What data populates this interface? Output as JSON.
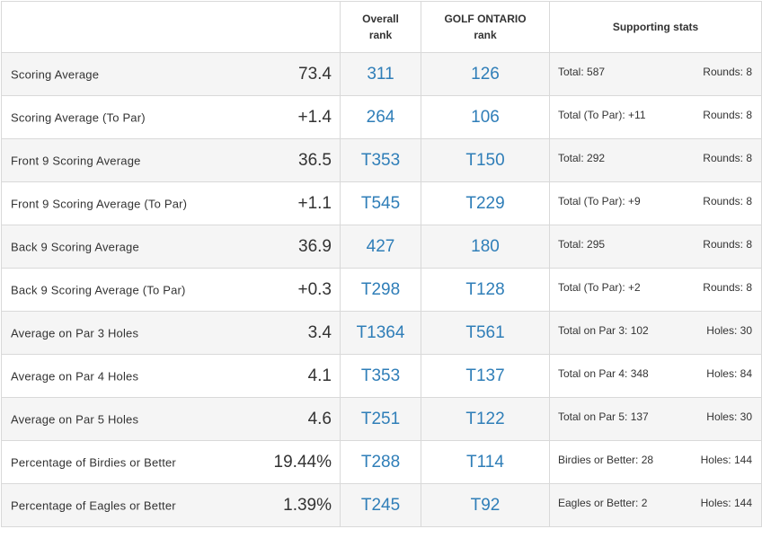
{
  "headers": {
    "label": "",
    "overall_line1": "Overall",
    "overall_line2": "rank",
    "go_line1": "GOLF ONTARIO",
    "go_line2": "rank",
    "supporting": "Supporting stats"
  },
  "rows": [
    {
      "name": "Scoring Average",
      "value": "73.4",
      "overall": "311",
      "go": "126",
      "support_left": "Total: 587",
      "support_right": "Rounds: 8"
    },
    {
      "name": "Scoring Average (To Par)",
      "value": "+1.4",
      "overall": "264",
      "go": "106",
      "support_left": "Total (To Par): +11",
      "support_right": "Rounds: 8"
    },
    {
      "name": "Front 9 Scoring Average",
      "value": "36.5",
      "overall": "T353",
      "go": "T150",
      "support_left": "Total: 292",
      "support_right": "Rounds: 8"
    },
    {
      "name": "Front 9 Scoring Average (To Par)",
      "value": "+1.1",
      "overall": "T545",
      "go": "T229",
      "support_left": "Total (To Par): +9",
      "support_right": "Rounds: 8"
    },
    {
      "name": "Back 9 Scoring Average",
      "value": "36.9",
      "overall": "427",
      "go": "180",
      "support_left": "Total: 295",
      "support_right": "Rounds: 8"
    },
    {
      "name": "Back 9 Scoring Average (To Par)",
      "value": "+0.3",
      "overall": "T298",
      "go": "T128",
      "support_left": "Total (To Par): +2",
      "support_right": "Rounds: 8"
    },
    {
      "name": "Average on Par 3 Holes",
      "value": "3.4",
      "overall": "T1364",
      "go": "T561",
      "support_left": "Total on Par 3: 102",
      "support_right": "Holes: 30"
    },
    {
      "name": "Average on Par 4 Holes",
      "value": "4.1",
      "overall": "T353",
      "go": "T137",
      "support_left": "Total on Par 4: 348",
      "support_right": "Holes: 84"
    },
    {
      "name": "Average on Par 5 Holes",
      "value": "4.6",
      "overall": "T251",
      "go": "T122",
      "support_left": "Total on Par 5: 137",
      "support_right": "Holes: 30"
    },
    {
      "name": "Percentage of Birdies or Better",
      "value": "19.44%",
      "overall": "T288",
      "go": "T114",
      "support_left": "Birdies or Better: 28",
      "support_right": "Holes: 144"
    },
    {
      "name": "Percentage of Eagles or Better",
      "value": "1.39%",
      "overall": "T245",
      "go": "T92",
      "support_left": "Eagles or Better: 2",
      "support_right": "Holes: 144"
    }
  ],
  "colors": {
    "rank_link": "#2f7eb8",
    "row_alt": "#f5f5f5",
    "border": "#d9d9d9"
  }
}
